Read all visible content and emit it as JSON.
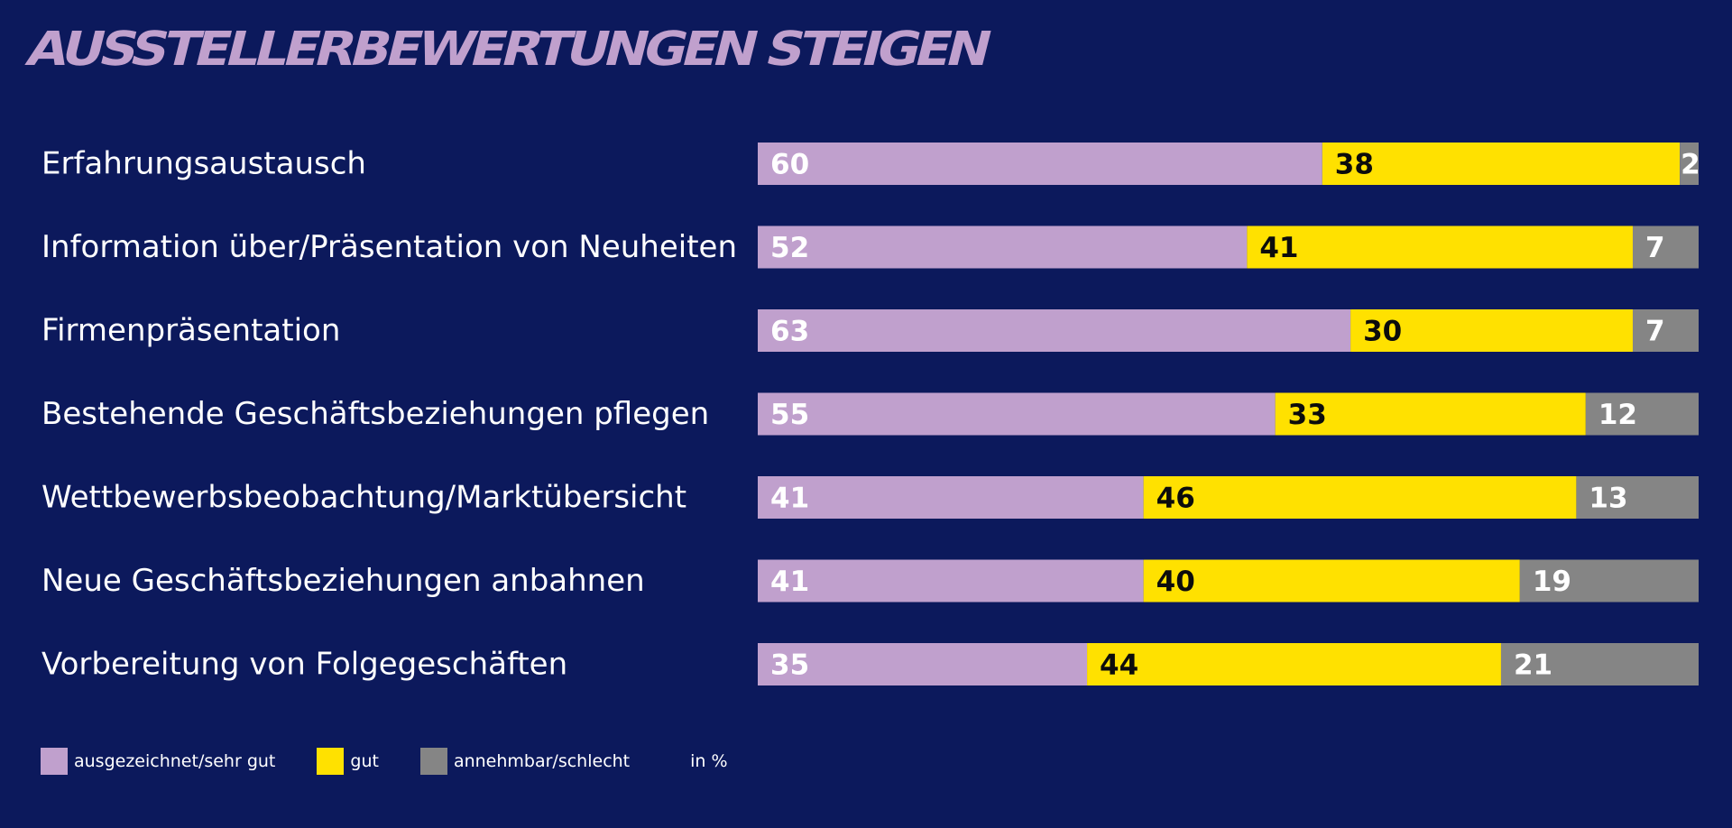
{
  "colors": {
    "background": "#0c195c",
    "title": "#c0a0cd",
    "text": "#ffffff",
    "sehr_gut": "#c0a0cd",
    "gut": "#ffe100",
    "schlecht": "#858585",
    "label_on_light": "#0c0c0c"
  },
  "chart_data": {
    "type": "bar",
    "orientation": "horizontal",
    "stacked": true,
    "title": "AUSSTELLERBEWERTUNGEN STEIGEN",
    "unit": "in %",
    "categories": [
      "Erfahrungsaustausch",
      "Information über/Präsentation von Neuheiten",
      "Firmenpräsentation",
      "Bestehende Geschäftsbeziehungen pflegen",
      "Wettbewerbsbeobachtung/Marktübersicht",
      "Neue Geschäftsbeziehungen anbahnen",
      "Vorbereitung von Folgegeschäften"
    ],
    "series": [
      {
        "name": "ausgezeichnet/sehr gut",
        "color": "#c0a0cd",
        "values": [
          60,
          52,
          63,
          55,
          41,
          41,
          35
        ]
      },
      {
        "name": "gut",
        "color": "#ffe100",
        "values": [
          38,
          41,
          30,
          33,
          46,
          40,
          44
        ]
      },
      {
        "name": "annehmbar/schlecht",
        "color": "#858585",
        "values": [
          2,
          7,
          7,
          12,
          13,
          19,
          21
        ]
      }
    ],
    "xlim": [
      0,
      100
    ],
    "grid": false,
    "legend_position": "bottom-left",
    "data_labels": true
  }
}
